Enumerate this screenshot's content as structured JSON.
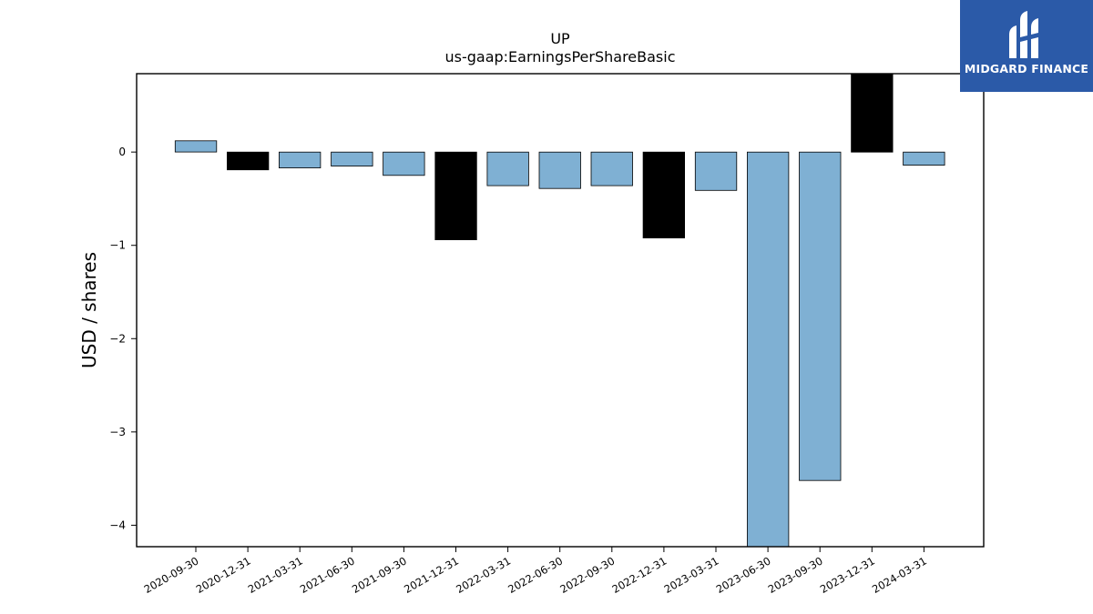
{
  "chart_data": {
    "type": "bar",
    "title": "UP",
    "subtitle": "us-gaap:EarningsPerShareBasic",
    "ylabel": "USD / shares",
    "xlabel": "",
    "ylim": [
      -4.23,
      0.84
    ],
    "yticks": [
      0,
      -1,
      -2,
      -3,
      -4
    ],
    "ytick_labels": [
      "0",
      "−1",
      "−2",
      "−3",
      "−4"
    ],
    "categories": [
      "2020-09-30",
      "2020-12-31",
      "2021-03-31",
      "2021-06-30",
      "2021-09-30",
      "2021-12-31",
      "2022-03-31",
      "2022-06-30",
      "2022-09-30",
      "2022-12-31",
      "2023-03-31",
      "2023-06-30",
      "2023-09-30",
      "2023-12-31",
      "2024-03-31"
    ],
    "values": [
      0.12,
      -0.19,
      -0.17,
      -0.15,
      -0.25,
      -0.94,
      -0.36,
      -0.39,
      -0.36,
      -0.92,
      -0.41,
      -4.23,
      -3.52,
      0.84,
      -0.14
    ],
    "bar_colors": [
      "#7fb0d3",
      "#000000",
      "#7fb0d3",
      "#7fb0d3",
      "#7fb0d3",
      "#000000",
      "#7fb0d3",
      "#7fb0d3",
      "#7fb0d3",
      "#000000",
      "#7fb0d3",
      "#7fb0d3",
      "#7fb0d3",
      "#000000",
      "#7fb0d3"
    ],
    "grid": false,
    "legend": "none"
  },
  "logo": {
    "text": "MIDGARD FINANCE",
    "background": "#2b5aa8"
  }
}
